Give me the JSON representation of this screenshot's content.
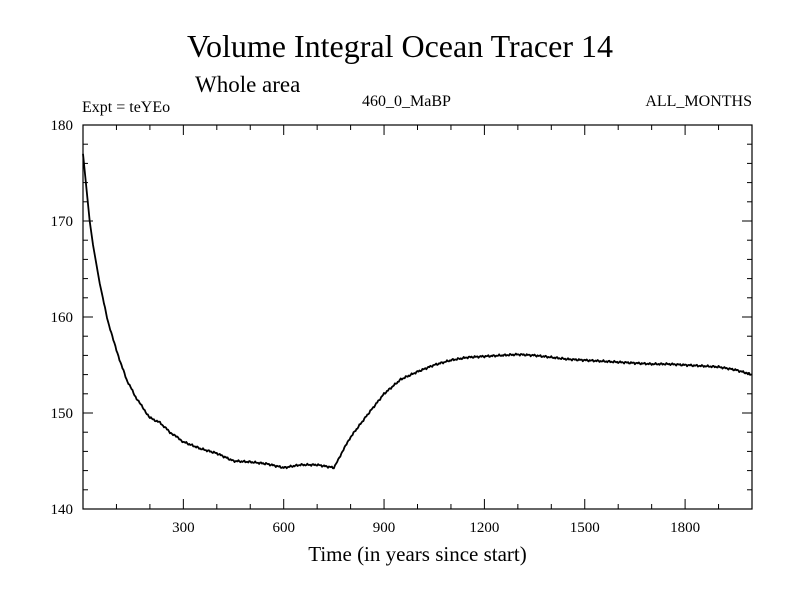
{
  "chart_data": {
    "type": "line",
    "title": "Volume Integral Ocean Tracer 14",
    "subtitle": "Whole area",
    "header_left": "Expt = teYEo",
    "header_center": "460_0_MaBP",
    "header_right": "ALL_MONTHS",
    "xlabel": "Time (in years since start)",
    "ylabel": "",
    "xlim": [
      0,
      2000
    ],
    "ylim": [
      140,
      180
    ],
    "x_ticks": [
      300,
      600,
      900,
      1200,
      1500,
      1800
    ],
    "x_tick_labels": [
      "300",
      "600",
      "900",
      "1200",
      "1500",
      "1800"
    ],
    "y_ticks": [
      140,
      150,
      160,
      170,
      180
    ],
    "y_tick_labels": [
      "140",
      "150",
      "160",
      "170",
      "180"
    ],
    "grid": false,
    "series": [
      {
        "name": "Volume Integral Ocean Tracer 14",
        "color": "#000000",
        "x": [
          0,
          10,
          20,
          30,
          50,
          75,
          100,
          130,
          160,
          200,
          230,
          260,
          300,
          350,
          400,
          450,
          500,
          550,
          600,
          650,
          700,
          750,
          760,
          800,
          850,
          900,
          950,
          1000,
          1050,
          1100,
          1150,
          1200,
          1250,
          1300,
          1350,
          1400,
          1450,
          1500,
          1550,
          1600,
          1650,
          1700,
          1750,
          1800,
          1850,
          1900,
          1950,
          2000
        ],
        "y": [
          177.0,
          173.5,
          170.0,
          167.5,
          163.5,
          159.5,
          156.5,
          153.5,
          151.5,
          149.5,
          149.0,
          148.0,
          147.0,
          146.3,
          145.8,
          145.0,
          144.9,
          144.7,
          144.3,
          144.6,
          144.6,
          144.3,
          145.0,
          147.5,
          149.8,
          152.0,
          153.5,
          154.3,
          155.0,
          155.5,
          155.8,
          155.9,
          156.0,
          156.1,
          156.0,
          155.8,
          155.6,
          155.5,
          155.4,
          155.3,
          155.2,
          155.1,
          155.1,
          155.0,
          154.9,
          154.8,
          154.5,
          154.0
        ]
      }
    ]
  }
}
